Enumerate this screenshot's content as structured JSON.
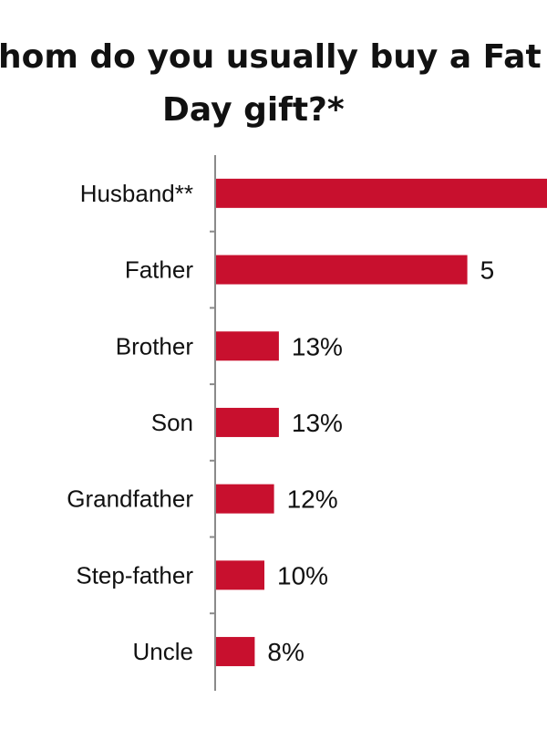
{
  "chart_data": {
    "type": "bar",
    "orientation": "horizontal",
    "title": "Whom do you usually buy a Father's Day gift?*",
    "title_visible": [
      "hom do you usually buy a Fat",
      "Day gift?*"
    ],
    "categories": [
      "Husband**",
      "Father",
      "Brother",
      "Son",
      "Grandfather",
      "Step-father",
      "Uncle"
    ],
    "values": [
      null,
      null,
      13,
      13,
      12,
      10,
      8
    ],
    "value_labels": [
      "",
      "5",
      "13%",
      "13%",
      "12%",
      "10%",
      "8%"
    ],
    "estimated_values": [
      70,
      52,
      13,
      13,
      12,
      10,
      8
    ],
    "bar_color": "#c8102e",
    "xlabel": "",
    "ylabel": "",
    "grid": false,
    "legend": "none"
  }
}
